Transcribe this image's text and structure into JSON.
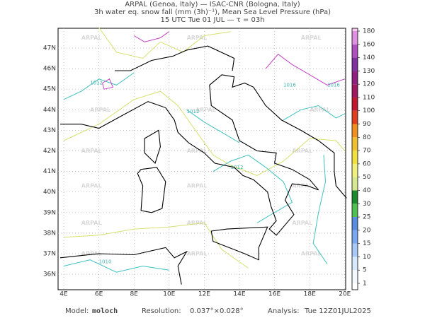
{
  "header": {
    "line1": "ARPAL (Genoa, Italy)  —  ISAC-CNR (Bologna, Italy)",
    "line2": "3h water eq. snow fall (mm (3h)⁻¹), Mean Sea Level Pressure (hPa)",
    "line3": "15 UTC Tue 01 JUL  —  τ = 03h"
  },
  "map": {
    "lat_labels": [
      "47N",
      "46N",
      "45N",
      "44N",
      "43N",
      "42N",
      "41N",
      "40N",
      "39N",
      "38N",
      "37N",
      "36N"
    ],
    "lon_labels": [
      "4E",
      "6E",
      "8E",
      "10E",
      "12E",
      "14E",
      "16E",
      "18E",
      "20E"
    ],
    "watermark": "ARPAL",
    "contour_labels": [
      "1012",
      "1016",
      "1016",
      "1012",
      "1012",
      "1010"
    ]
  },
  "colorbar": {
    "labels": [
      "1",
      "5",
      "10",
      "15",
      "20",
      "25",
      "30",
      "40",
      "50",
      "60",
      "70",
      "80",
      "90",
      "100",
      "110",
      "120",
      "130",
      "140",
      "160",
      "180"
    ],
    "colors": [
      "#ffffff",
      "#f4f8ff",
      "#d8e8ff",
      "#a8c8f8",
      "#7aa8f0",
      "#5a8ce0",
      "#50c050",
      "#1e8a2e",
      "#d8e890",
      "#f0f080",
      "#f0e040",
      "#f0c030",
      "#f09020",
      "#e04020",
      "#c01830",
      "#a01860",
      "#902080",
      "#8030a0",
      "#b050c0",
      "#e090e0",
      "#f8c8f0"
    ]
  },
  "footer": {
    "model_label": "Model:",
    "model": "moloch",
    "resolution_label": "Resolution:",
    "resolution": "0.037°×0.028°",
    "analysis_label": "Analysis:",
    "analysis": "Tue 12Z01JUL2025"
  }
}
